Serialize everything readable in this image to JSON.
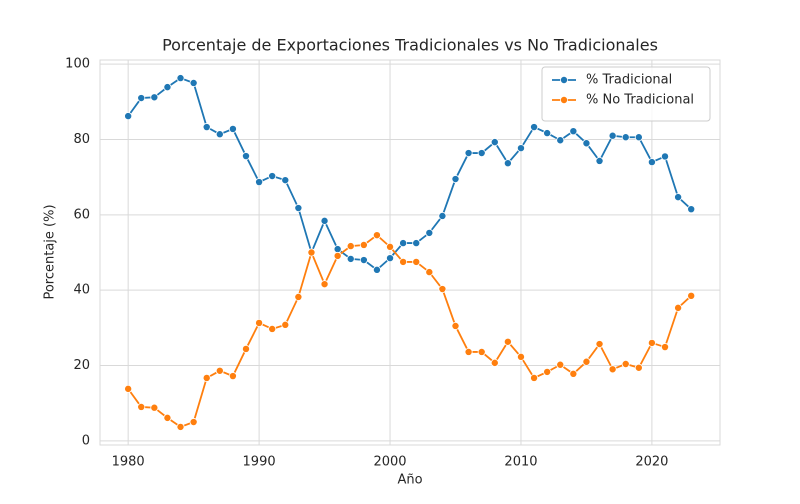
{
  "chart_data": {
    "type": "line",
    "title": "Porcentaje de Exportaciones Tradicionales vs No Tradicionales",
    "x_label": "Año",
    "y_label": "Porcentaje (%)",
    "x": [
      1980,
      1981,
      1982,
      1983,
      1984,
      1985,
      1986,
      1987,
      1988,
      1989,
      1990,
      1991,
      1992,
      1993,
      1994,
      1995,
      1996,
      1997,
      1998,
      1999,
      2000,
      2001,
      2002,
      2003,
      2004,
      2005,
      2006,
      2007,
      2008,
      2009,
      2010,
      2011,
      2012,
      2013,
      2014,
      2015,
      2016,
      2017,
      2018,
      2019,
      2020,
      2021,
      2022,
      2023
    ],
    "series": [
      {
        "name": "% Tradicional",
        "color": "#1f77b4",
        "values": [
          86.2,
          91.0,
          91.2,
          93.9,
          96.3,
          95.0,
          83.3,
          81.4,
          82.8,
          75.6,
          68.7,
          70.3,
          69.2,
          61.8,
          50.0,
          58.4,
          50.9,
          48.3,
          48.0,
          45.4,
          48.5,
          52.5,
          52.5,
          55.2,
          59.7,
          69.5,
          76.4,
          76.4,
          79.3,
          73.7,
          77.7,
          83.3,
          81.7,
          79.8,
          82.2,
          79.0,
          74.3,
          81.0,
          80.6,
          80.6,
          74.0,
          75.5,
          64.7,
          61.5
        ]
      },
      {
        "name": "% No Tradicional",
        "color": "#ff7f0e",
        "values": [
          13.8,
          9.0,
          8.8,
          6.1,
          3.7,
          5.0,
          16.7,
          18.6,
          17.2,
          24.4,
          31.3,
          29.7,
          30.8,
          38.2,
          50.0,
          41.6,
          49.1,
          51.7,
          52.0,
          54.6,
          51.5,
          47.5,
          47.5,
          44.8,
          40.3,
          30.5,
          23.6,
          23.6,
          20.7,
          26.3,
          22.3,
          16.7,
          18.3,
          20.2,
          17.8,
          21.0,
          25.7,
          19.0,
          20.4,
          19.4,
          26.0,
          24.9,
          35.3,
          38.5
        ]
      }
    ],
    "xlim": [
      1977.85,
      2025.2
    ],
    "ylim": [
      -1.1,
      101.1
    ],
    "xticks": [
      1980,
      1990,
      2000,
      2010,
      2020
    ],
    "yticks": [
      0,
      20,
      40,
      60,
      80,
      100
    ],
    "grid": true,
    "legend": "upper-right"
  }
}
